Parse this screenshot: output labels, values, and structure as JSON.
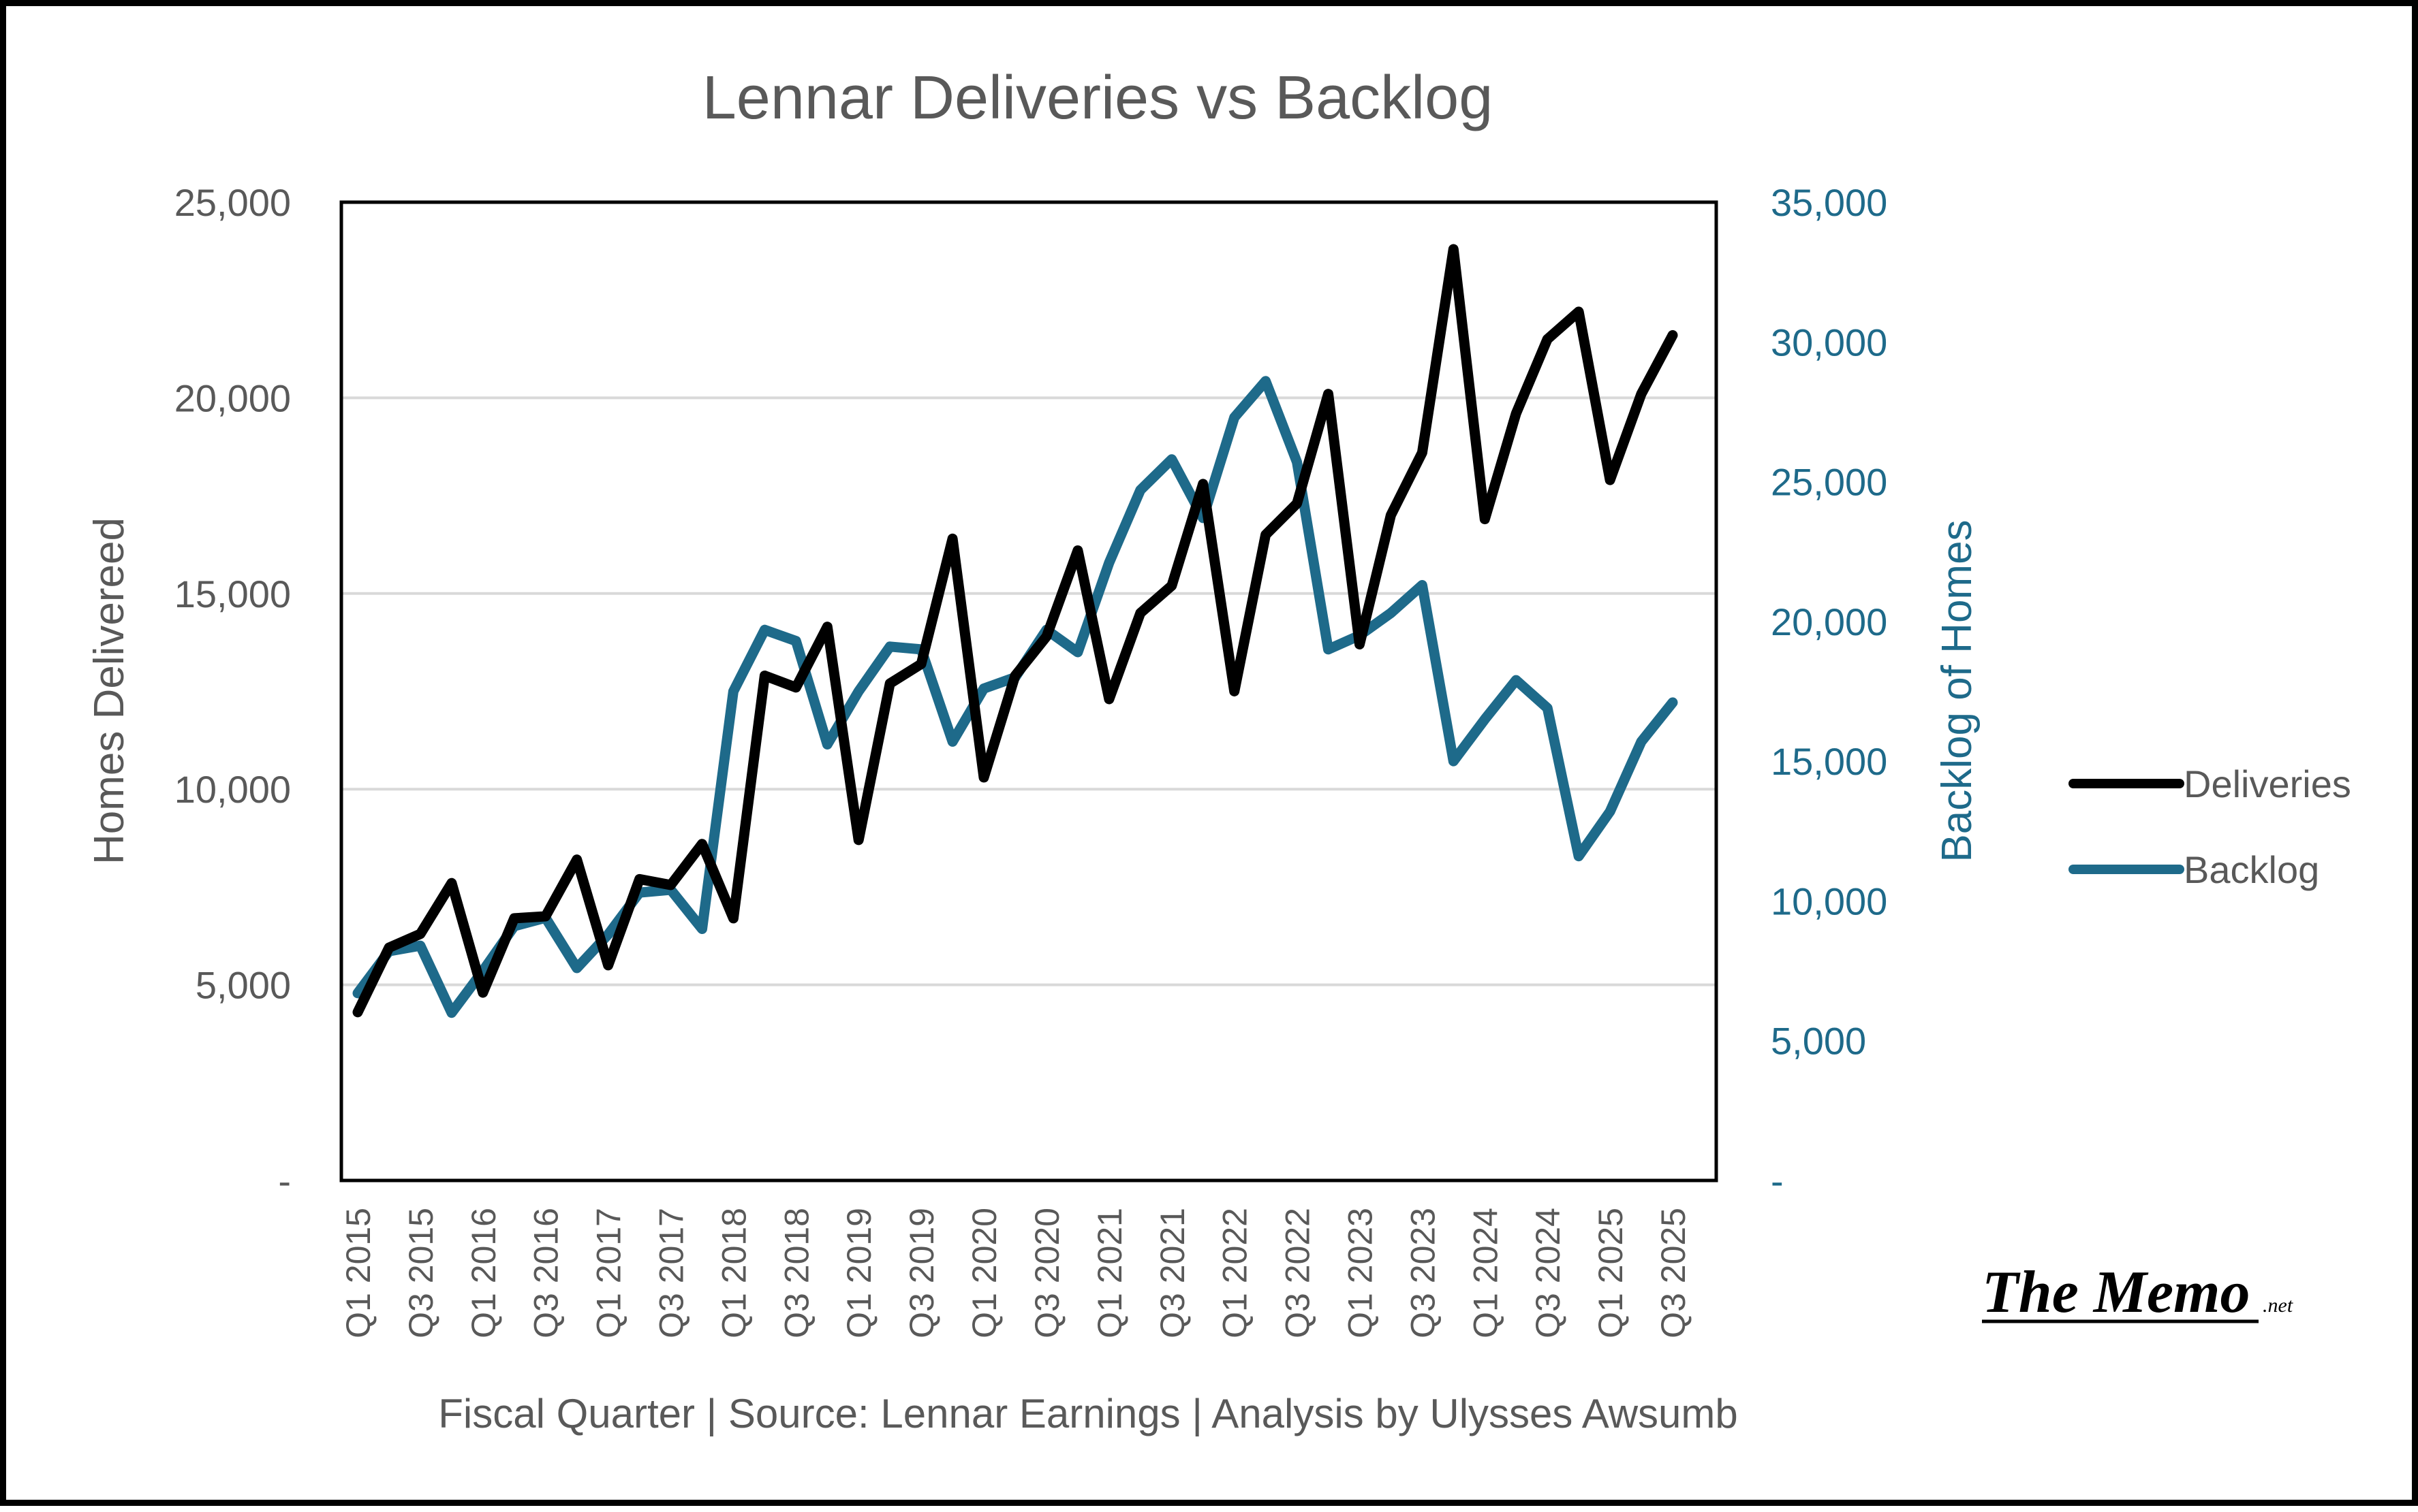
{
  "chart_data": {
    "type": "line",
    "title": "Lennar Deliveries vs Backlog",
    "xlabel": "Fiscal Quarter  | Source: Lennar Earnings | Analysis by Ulysses Awsumb",
    "ylabel": "Homes Delivereed",
    "y2label": "Backlog of Homes",
    "ylim": [
      0,
      25000
    ],
    "y2lim": [
      0,
      35000
    ],
    "yticks": [
      0,
      5000,
      10000,
      15000,
      20000,
      25000
    ],
    "ytick_labels": [
      "-",
      "5,000",
      "10,000",
      "15,000",
      "20,000",
      "25,000"
    ],
    "y2ticks": [
      0,
      5000,
      10000,
      15000,
      20000,
      25000,
      30000,
      35000
    ],
    "y2tick_labels": [
      "-",
      "5,000",
      "10,000",
      "15,000",
      "20,000",
      "25,000",
      "30,000",
      "35,000"
    ],
    "grid": true,
    "legend_position": "right",
    "categories": [
      "Q1 2015",
      "Q2 2015",
      "Q3 2015",
      "Q4 2015",
      "Q1 2016",
      "Q2 2016",
      "Q3 2016",
      "Q4 2016",
      "Q1 2017",
      "Q2 2017",
      "Q3 2017",
      "Q4 2017",
      "Q1 2018",
      "Q2 2018",
      "Q3 2018",
      "Q4 2018",
      "Q1 2019",
      "Q2 2019",
      "Q3 2019",
      "Q4 2019",
      "Q1 2020",
      "Q2 2020",
      "Q3 2020",
      "Q4 2020",
      "Q1 2021",
      "Q2 2021",
      "Q3 2021",
      "Q4 2021",
      "Q1 2022",
      "Q2 2022",
      "Q3 2022",
      "Q4 2022",
      "Q1 2023",
      "Q2 2023",
      "Q3 2023",
      "Q4 2023",
      "Q1 2024",
      "Q2 2024",
      "Q3 2024",
      "Q4 2024",
      "Q1 2025",
      "Q2 2025",
      "Q3 2025"
    ],
    "xtick_labels": [
      "Q1 2015",
      "Q3 2015",
      "Q1 2016",
      "Q3 2016",
      "Q1 2017",
      "Q3 2017",
      "Q1 2018",
      "Q3 2018",
      "Q1 2019",
      "Q3 2019",
      "Q1 2020",
      "Q3 2020",
      "Q1 2021",
      "Q3 2021",
      "Q1 2022",
      "Q3 2022",
      "Q1 2023",
      "Q3 2023",
      "Q1 2024",
      "Q3 2024",
      "Q1 2025",
      "Q3 2025"
    ],
    "series": [
      {
        "name": "Deliveries",
        "axis": "left",
        "color": "#000000",
        "values": [
          4300,
          5950,
          6300,
          7600,
          4800,
          6700,
          6750,
          8200,
          5500,
          7700,
          7550,
          8600,
          6700,
          12900,
          12600,
          14150,
          8700,
          12700,
          13200,
          16400,
          10300,
          12900,
          13900,
          16100,
          12300,
          14500,
          15200,
          17800,
          12500,
          16500,
          17300,
          20100,
          13700,
          17000,
          18600,
          23800,
          16900,
          19600,
          21500,
          22200,
          17900,
          20100,
          21600
        ]
      },
      {
        "name": "Backlog",
        "axis": "right",
        "color": "#1e6a8a",
        "values": [
          6700,
          8200,
          8400,
          6000,
          7500,
          9100,
          9400,
          7600,
          8800,
          10300,
          10400,
          9000,
          17500,
          19700,
          19300,
          15600,
          17500,
          19100,
          19000,
          15700,
          17600,
          18000,
          19700,
          18900,
          22100,
          24700,
          25800,
          23700,
          27300,
          28600,
          25700,
          19000,
          19500,
          20300,
          21300,
          15000,
          16500,
          17900,
          16900,
          11600,
          13200,
          15700,
          17100
        ]
      }
    ]
  },
  "logo": {
    "text": "The Memo",
    "suffix": ".net"
  }
}
